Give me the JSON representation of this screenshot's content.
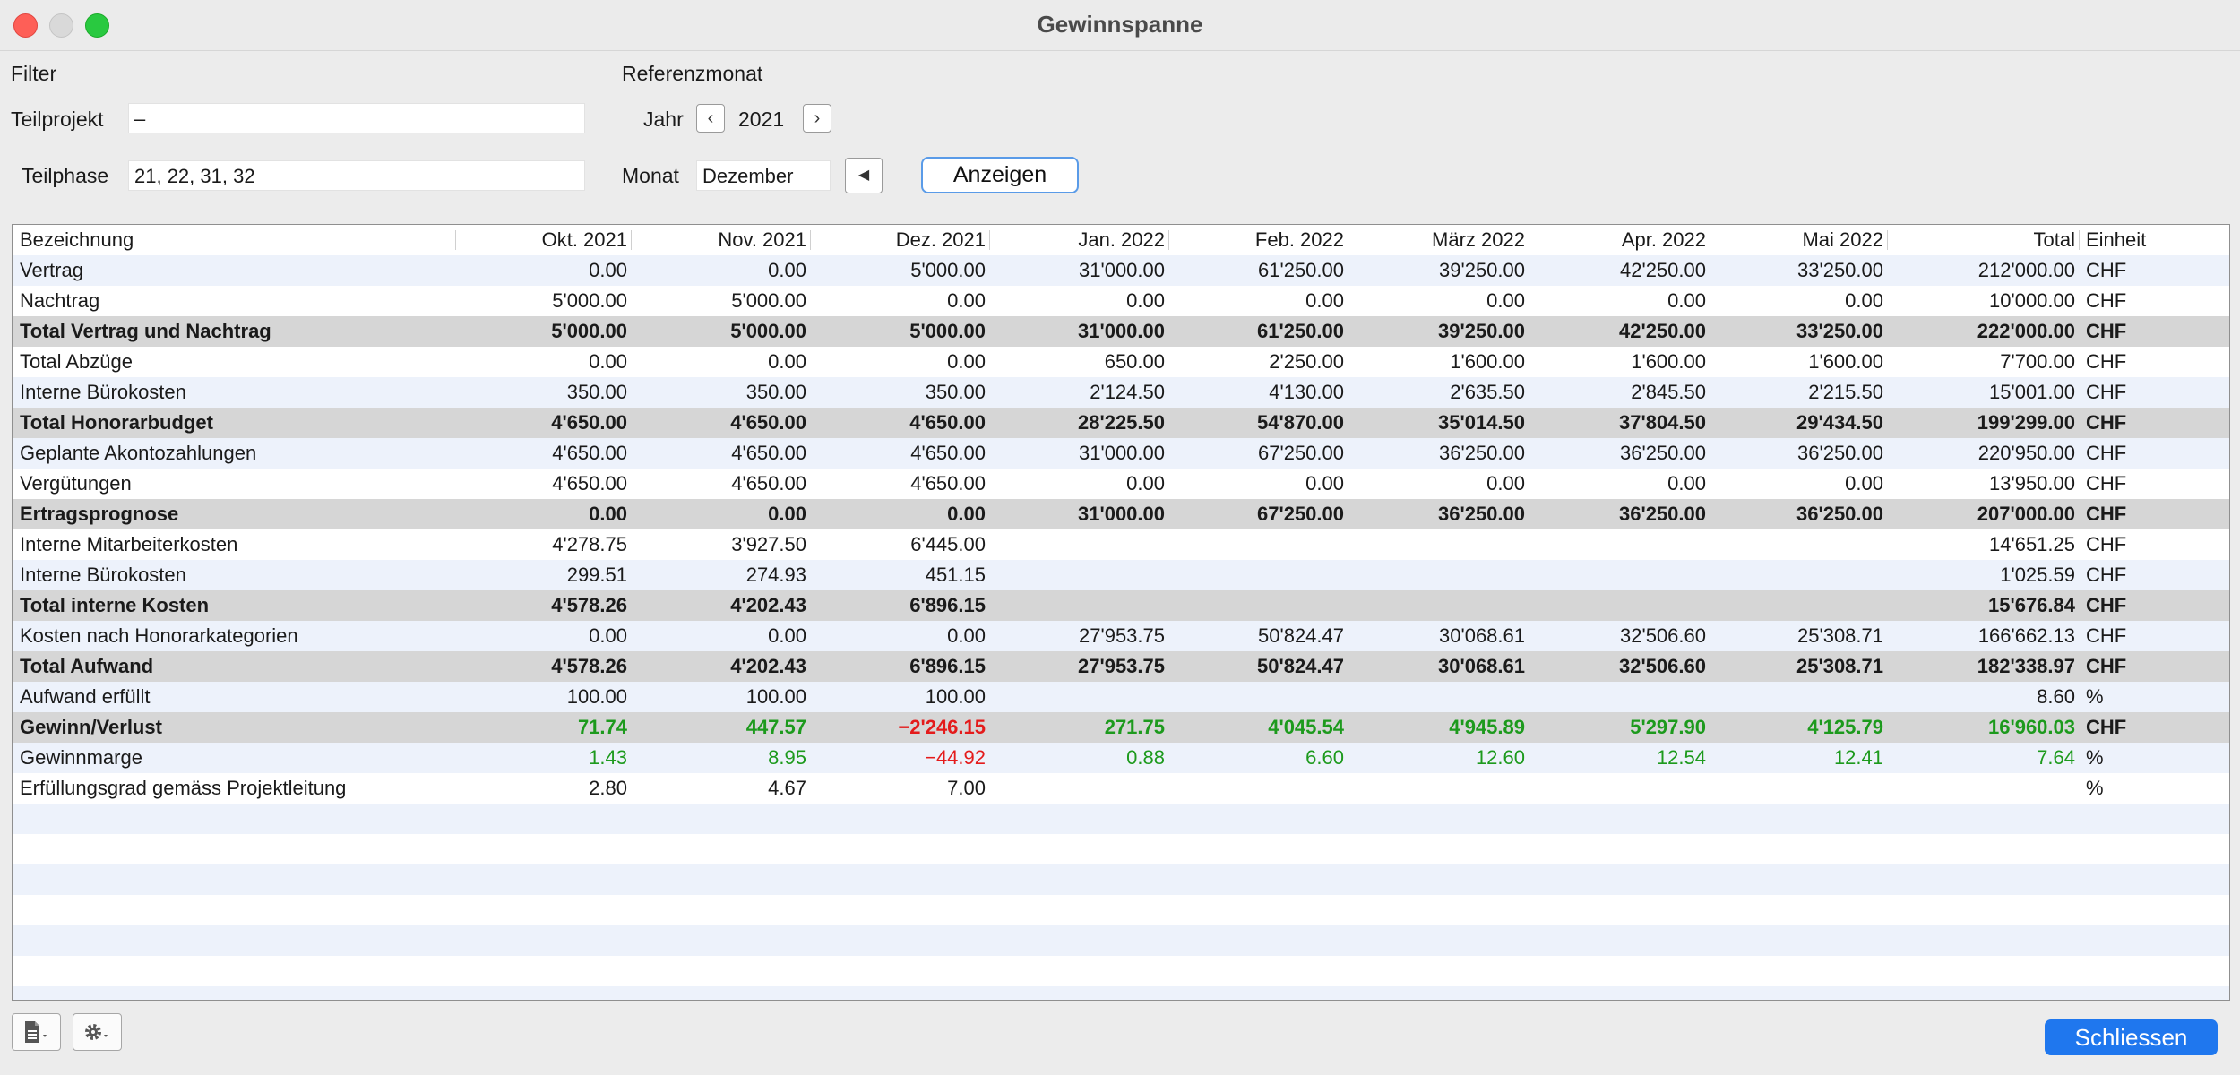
{
  "window": {
    "title": "Gewinnspanne"
  },
  "filter": {
    "section_label": "Filter",
    "teilprojekt_label": "Teilprojekt",
    "teilprojekt_value": "–",
    "teilphase_label": "Teilphase",
    "teilphase_value": "21, 22, 31, 32"
  },
  "referenz": {
    "section_label": "Referenzmonat",
    "jahr_label": "Jahr",
    "jahr_value": "2021",
    "monat_label": "Monat",
    "monat_value": "Dezember",
    "show_button": "Anzeigen"
  },
  "table": {
    "columns": [
      "Bezeichnung",
      "Okt. 2021",
      "Nov. 2021",
      "Dez. 2021",
      "Jan. 2022",
      "Feb. 2022",
      "März 2022",
      "Apr. 2022",
      "Mai 2022",
      "Total",
      "Einheit"
    ],
    "rows": [
      {
        "label": "Vertrag",
        "values": [
          "0.00",
          "0.00",
          "5'000.00",
          "31'000.00",
          "61'250.00",
          "39'250.00",
          "42'250.00",
          "33'250.00",
          "212'000.00"
        ],
        "unit": "CHF",
        "bold": false
      },
      {
        "label": "Nachtrag",
        "values": [
          "5'000.00",
          "5'000.00",
          "0.00",
          "0.00",
          "0.00",
          "0.00",
          "0.00",
          "0.00",
          "10'000.00"
        ],
        "unit": "CHF",
        "bold": false
      },
      {
        "label": "Total Vertrag und Nachtrag",
        "values": [
          "5'000.00",
          "5'000.00",
          "5'000.00",
          "31'000.00",
          "61'250.00",
          "39'250.00",
          "42'250.00",
          "33'250.00",
          "222'000.00"
        ],
        "unit": "CHF",
        "bold": true
      },
      {
        "label": "Total Abzüge",
        "values": [
          "0.00",
          "0.00",
          "0.00",
          "650.00",
          "2'250.00",
          "1'600.00",
          "1'600.00",
          "1'600.00",
          "7'700.00"
        ],
        "unit": "CHF",
        "bold": false
      },
      {
        "label": "Interne Bürokosten",
        "values": [
          "350.00",
          "350.00",
          "350.00",
          "2'124.50",
          "4'130.00",
          "2'635.50",
          "2'845.50",
          "2'215.50",
          "15'001.00"
        ],
        "unit": "CHF",
        "bold": false
      },
      {
        "label": "Total Honorarbudget",
        "values": [
          "4'650.00",
          "4'650.00",
          "4'650.00",
          "28'225.50",
          "54'870.00",
          "35'014.50",
          "37'804.50",
          "29'434.50",
          "199'299.00"
        ],
        "unit": "CHF",
        "bold": true
      },
      {
        "label": "Geplante Akontozahlungen",
        "values": [
          "4'650.00",
          "4'650.00",
          "4'650.00",
          "31'000.00",
          "67'250.00",
          "36'250.00",
          "36'250.00",
          "36'250.00",
          "220'950.00"
        ],
        "unit": "CHF",
        "bold": false
      },
      {
        "label": "Vergütungen",
        "values": [
          "4'650.00",
          "4'650.00",
          "4'650.00",
          "0.00",
          "0.00",
          "0.00",
          "0.00",
          "0.00",
          "13'950.00"
        ],
        "unit": "CHF",
        "bold": false
      },
      {
        "label": "Ertragsprognose",
        "values": [
          "0.00",
          "0.00",
          "0.00",
          "31'000.00",
          "67'250.00",
          "36'250.00",
          "36'250.00",
          "36'250.00",
          "207'000.00"
        ],
        "unit": "CHF",
        "bold": true
      },
      {
        "label": "Interne Mitarbeiterkosten",
        "values": [
          "4'278.75",
          "3'927.50",
          "6'445.00",
          "",
          "",
          "",
          "",
          "",
          "14'651.25"
        ],
        "unit": "CHF",
        "bold": false
      },
      {
        "label": "Interne Bürokosten",
        "values": [
          "299.51",
          "274.93",
          "451.15",
          "",
          "",
          "",
          "",
          "",
          "1'025.59"
        ],
        "unit": "CHF",
        "bold": false
      },
      {
        "label": "Total interne Kosten",
        "values": [
          "4'578.26",
          "4'202.43",
          "6'896.15",
          "",
          "",
          "",
          "",
          "",
          "15'676.84"
        ],
        "unit": "CHF",
        "bold": true
      },
      {
        "label": "Kosten nach Honorarkategorien",
        "values": [
          "0.00",
          "0.00",
          "0.00",
          "27'953.75",
          "50'824.47",
          "30'068.61",
          "32'506.60",
          "25'308.71",
          "166'662.13"
        ],
        "unit": "CHF",
        "bold": false
      },
      {
        "label": "Total Aufwand",
        "values": [
          "4'578.26",
          "4'202.43",
          "6'896.15",
          "27'953.75",
          "50'824.47",
          "30'068.61",
          "32'506.60",
          "25'308.71",
          "182'338.97"
        ],
        "unit": "CHF",
        "bold": true
      },
      {
        "label": "Aufwand erfüllt",
        "values": [
          "100.00",
          "100.00",
          "100.00",
          "",
          "",
          "",
          "",
          "",
          "8.60"
        ],
        "unit": "%",
        "bold": false
      },
      {
        "label": "Gewinn/Verlust",
        "values": [
          "71.74",
          "447.57",
          "−2'246.15",
          "271.75",
          "4'045.54",
          "4'945.89",
          "5'297.90",
          "4'125.79",
          "16'960.03"
        ],
        "unit": "CHF",
        "bold": true,
        "colored": true
      },
      {
        "label": "Gewinnmarge",
        "values": [
          "1.43",
          "8.95",
          "−44.92",
          "0.88",
          "6.60",
          "12.60",
          "12.54",
          "12.41",
          "7.64"
        ],
        "unit": "%",
        "bold": false,
        "colored": true
      },
      {
        "label": "Erfüllungsgrad gemäss Projektleitung",
        "values": [
          "2.80",
          "4.67",
          "7.00",
          "",
          "",
          "",
          "",
          "",
          ""
        ],
        "unit": "%",
        "bold": false
      }
    ],
    "empty_rows": 7
  },
  "footer": {
    "close_button": "Schliessen"
  },
  "colors": {
    "positive": "#1d9a1d",
    "negative": "#e41b1b",
    "accent": "#1f77ee"
  }
}
